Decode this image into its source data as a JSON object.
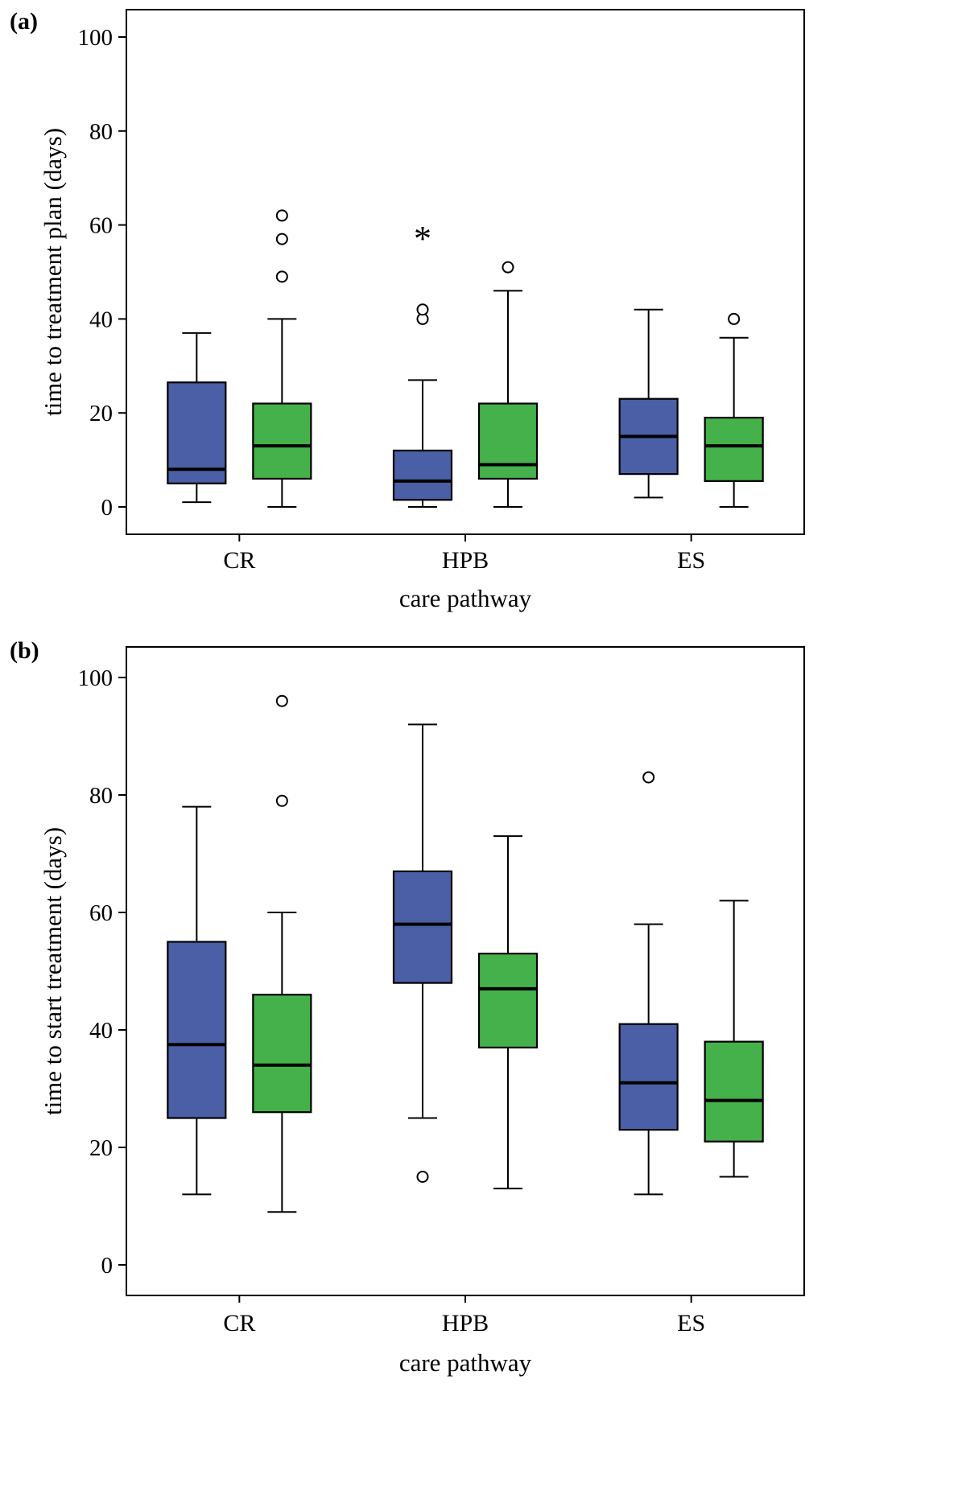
{
  "figure": {
    "background": "#ffffff",
    "axis_color": "#000000"
  },
  "chart_data": [
    {
      "type": "boxplot",
      "panel_label": "(a)",
      "ylabel": "time to treatment plan (days)",
      "xlabel": "care pathway",
      "categories": [
        "CR",
        "HPB",
        "ES"
      ],
      "ylim": [
        0,
        100
      ],
      "yticks": [
        0,
        20,
        40,
        60,
        80,
        100
      ],
      "grid": false,
      "legend": "none",
      "series": [
        {
          "name": "blue-group",
          "color": "#4a5fa5",
          "boxes": [
            {
              "low": 1,
              "q1": 5,
              "median": 8,
              "q3": 26.5,
              "high": 37,
              "outliers": [],
              "extremes": []
            },
            {
              "low": 0,
              "q1": 1.5,
              "median": 5.5,
              "q3": 12,
              "high": 27,
              "outliers": [
                40,
                42
              ],
              "extremes": [
                57
              ]
            },
            {
              "low": 2,
              "q1": 7,
              "median": 15,
              "q3": 23,
              "high": 42,
              "outliers": [],
              "extremes": []
            }
          ]
        },
        {
          "name": "green-group",
          "color": "#45b14a",
          "boxes": [
            {
              "low": 0,
              "q1": 6,
              "median": 13,
              "q3": 22,
              "high": 40,
              "outliers": [
                49,
                57,
                62
              ],
              "extremes": []
            },
            {
              "low": 0,
              "q1": 6,
              "median": 9,
              "q3": 22,
              "high": 46,
              "outliers": [
                51
              ],
              "extremes": []
            },
            {
              "low": 0,
              "q1": 5.5,
              "median": 13,
              "q3": 19,
              "high": 36,
              "outliers": [
                40
              ],
              "extremes": []
            }
          ]
        }
      ]
    },
    {
      "type": "boxplot",
      "panel_label": "(b)",
      "ylabel": "time to start treatment (days)",
      "xlabel": "care pathway",
      "categories": [
        "CR",
        "HPB",
        "ES"
      ],
      "ylim": [
        0,
        100
      ],
      "yticks": [
        0,
        20,
        40,
        60,
        80,
        100
      ],
      "grid": false,
      "legend": "none",
      "series": [
        {
          "name": "blue-group",
          "color": "#4a5fa5",
          "boxes": [
            {
              "low": 12,
              "q1": 25,
              "median": 37.5,
              "q3": 55,
              "high": 78,
              "outliers": [],
              "extremes": []
            },
            {
              "low": 25,
              "q1": 48,
              "median": 58,
              "q3": 67,
              "high": 92,
              "outliers": [
                15
              ],
              "extremes": []
            },
            {
              "low": 12,
              "q1": 23,
              "median": 31,
              "q3": 41,
              "high": 58,
              "outliers": [
                83
              ],
              "extremes": []
            }
          ]
        },
        {
          "name": "green-group",
          "color": "#45b14a",
          "boxes": [
            {
              "low": 9,
              "q1": 26,
              "median": 34,
              "q3": 46,
              "high": 60,
              "outliers": [
                79,
                96
              ],
              "extremes": []
            },
            {
              "low": 13,
              "q1": 37,
              "median": 47,
              "q3": 53,
              "high": 73,
              "outliers": [],
              "extremes": []
            },
            {
              "low": 15,
              "q1": 21,
              "median": 28,
              "q3": 38,
              "high": 62,
              "outliers": [],
              "extremes": []
            }
          ]
        }
      ]
    }
  ]
}
